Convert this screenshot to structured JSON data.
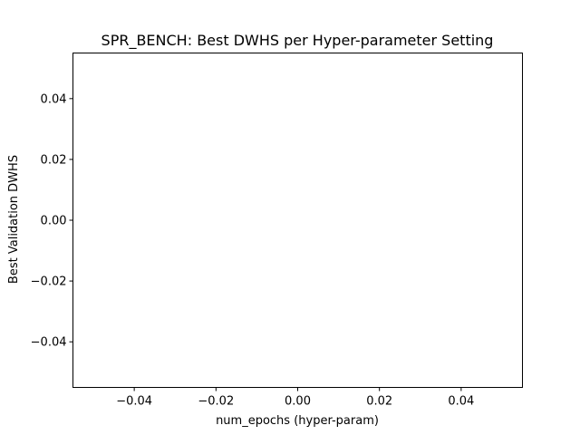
{
  "chart_data": {
    "type": "bar",
    "title": "SPR_BENCH: Best DWHS per Hyper-parameter Setting",
    "xlabel": "num_epochs (hyper-param)",
    "ylabel": "Best Validation DWHS",
    "categories": [],
    "values": [],
    "xlim": [
      -0.055,
      0.055
    ],
    "ylim": [
      -0.055,
      0.055
    ],
    "xticks": [
      -0.04,
      -0.02,
      0.0,
      0.02,
      0.04
    ],
    "yticks": [
      -0.04,
      -0.02,
      0.0,
      0.02,
      0.04
    ],
    "xtick_labels": [
      "−0.04",
      "−0.02",
      "0.00",
      "0.02",
      "0.04"
    ],
    "ytick_labels": [
      "−0.04",
      "−0.02",
      "0.00",
      "0.02",
      "0.04"
    ],
    "grid": false,
    "legend": "none"
  }
}
